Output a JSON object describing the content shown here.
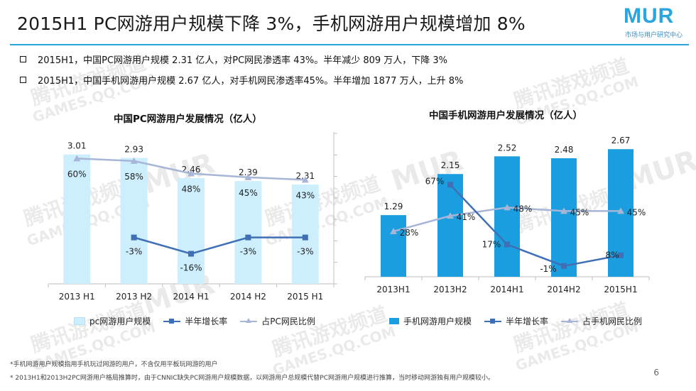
{
  "title": "2015H1 PC网游用户规模下降 3%，手机网游用户规模增加 8%",
  "logo": {
    "mark": "MUR",
    "sub": "市场与用户研究中心"
  },
  "bullets": [
    "2015H1，中国PC网游用户规模 2.31 亿人，对PC网民渗透率 43%。半年减少 809 万人，下降 3%",
    "2015H1，中国手机网游用户规模 2.67 亿人，对手机网民渗透率45%。半年增加 1877 万人，上升 8%"
  ],
  "watermark": {
    "cn": "腾讯游戏频道",
    "en": "GAMES.QQ.COM",
    "mark": "MUR"
  },
  "chart_data": [
    {
      "type": "bar",
      "title": "中国PC网游用户发展情况（亿人）",
      "categories": [
        "2013 H1",
        "2013 H2",
        "2014 H1",
        "2014 H2",
        "2015 H1"
      ],
      "bar_series": {
        "name": "pc网游用户规模",
        "values": [
          3.01,
          2.93,
          2.46,
          2.39,
          2.31
        ],
        "labels": [
          "3.01",
          "2.93",
          "2.46",
          "2.39",
          "2.31"
        ],
        "color": "#cdeefc"
      },
      "growth_series": {
        "name": "半年增长率",
        "values": [
          null,
          -3,
          -16,
          -3,
          -3
        ],
        "labels": [
          "",
          "-3%",
          "-16%",
          "-3%",
          "-3%"
        ],
        "color": "#3f6fb5"
      },
      "penetration_series": {
        "name": "占PC网民比例",
        "values": [
          60,
          58,
          48,
          45,
          43
        ],
        "labels": [
          "60%",
          "58%",
          "48%",
          "45%",
          "43%"
        ],
        "color": "#a7b6d6"
      },
      "ylim": [
        0,
        3.5
      ],
      "y2lim": [
        -40,
        80
      ]
    },
    {
      "type": "bar",
      "title": "中国手机网游用户发展情况（亿人）",
      "categories": [
        "2013H1",
        "2013H2",
        "2014H1",
        "2014H2",
        "2015H1"
      ],
      "bar_series": {
        "name": "手机网游用户规模",
        "values": [
          1.29,
          2.15,
          2.52,
          2.48,
          2.67
        ],
        "labels": [
          "1.29",
          "2.15",
          "2.52",
          "2.48",
          "2.67"
        ],
        "color": "#1a9ee0"
      },
      "growth_series": {
        "name": "半年增长率",
        "values": [
          null,
          67,
          17,
          -1,
          8
        ],
        "labels": [
          "",
          "67%",
          "17%",
          "-1%",
          "8%"
        ],
        "color": "#3f6fb5"
      },
      "penetration_series": {
        "name": "占手机网民比例",
        "values": [
          28,
          41,
          48,
          45,
          45
        ],
        "labels": [
          "28%",
          "41%",
          "48%",
          "45%",
          "45%"
        ],
        "color": "#a7b6d6"
      },
      "ylim": [
        0,
        3.0
      ],
      "y2lim": [
        -10,
        110
      ]
    }
  ],
  "footnotes": [
    "*手机网游用户规模指用手机玩过网游的用户，不含仅用平板玩网游的用户",
    "* 2013H1和2013H2PC网游用户格局推算时，由于CNNIC缺失PC网游用户规模数据，以网游用户总规模代替PC网游用户规模进行推算，当时移动网游独有用户规模较小。"
  ],
  "page_number": "6"
}
